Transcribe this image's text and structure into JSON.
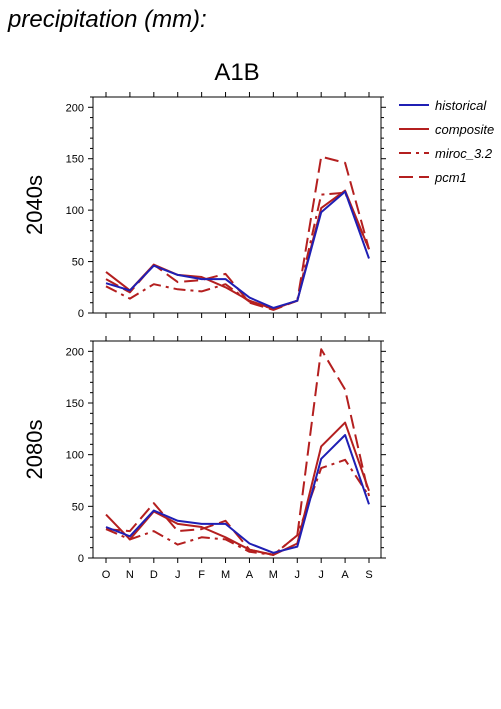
{
  "page_title": "precipitation (mm):",
  "chart_data": {
    "type": "line",
    "title": "A1B",
    "categories": [
      "O",
      "N",
      "D",
      "J",
      "F",
      "M",
      "A",
      "M",
      "J",
      "J",
      "A",
      "S"
    ],
    "ylim": [
      0,
      210
    ],
    "yticks": [
      0,
      50,
      100,
      150,
      200
    ],
    "grid": false,
    "legend_position": "top-right",
    "legend": [
      {
        "name": "historical",
        "color": "#1f1fb4",
        "dash": "solid"
      },
      {
        "name": "composite",
        "color": "#b41f1f",
        "dash": "solid"
      },
      {
        "name": "miroc_3.2",
        "color": "#b41f1f",
        "dash": "dashdot"
      },
      {
        "name": "pcm1",
        "color": "#b41f1f",
        "dash": "dash"
      }
    ],
    "panels": [
      {
        "ylabel": "2040s",
        "series": [
          {
            "name": "historical",
            "values": [
              29,
              22,
              46,
              37,
              33,
              33,
              15,
              5,
              12,
              98,
              118,
              53
            ]
          },
          {
            "name": "composite",
            "values": [
              40,
              22,
              47,
              37,
              35,
              25,
              12,
              4,
              12,
              102,
              119,
              62
            ]
          },
          {
            "name": "miroc_3.2",
            "values": [
              26,
              14,
              28,
              23,
              21,
              28,
              11,
              4,
              12,
              115,
              117,
              62
            ]
          },
          {
            "name": "pcm1",
            "values": [
              33,
              20,
              47,
              30,
              32,
              38,
              10,
              3,
              12,
              152,
              146,
              62
            ]
          }
        ]
      },
      {
        "ylabel": "2080s",
        "series": [
          {
            "name": "historical",
            "values": [
              30,
              21,
              46,
              36,
              33,
              33,
              14,
              5,
              11,
              96,
              119,
              52
            ]
          },
          {
            "name": "composite",
            "values": [
              42,
              18,
              45,
              33,
              30,
              20,
              8,
              3,
              14,
              108,
              131,
              65
            ]
          },
          {
            "name": "miroc_3.2",
            "values": [
              28,
              18,
              26,
              13,
              20,
              18,
              6,
              3,
              22,
              87,
              95,
              60
            ]
          },
          {
            "name": "pcm1",
            "values": [
              28,
              26,
              53,
              26,
              28,
              36,
              8,
              3,
              22,
              202,
              163,
              60
            ]
          }
        ]
      }
    ]
  }
}
